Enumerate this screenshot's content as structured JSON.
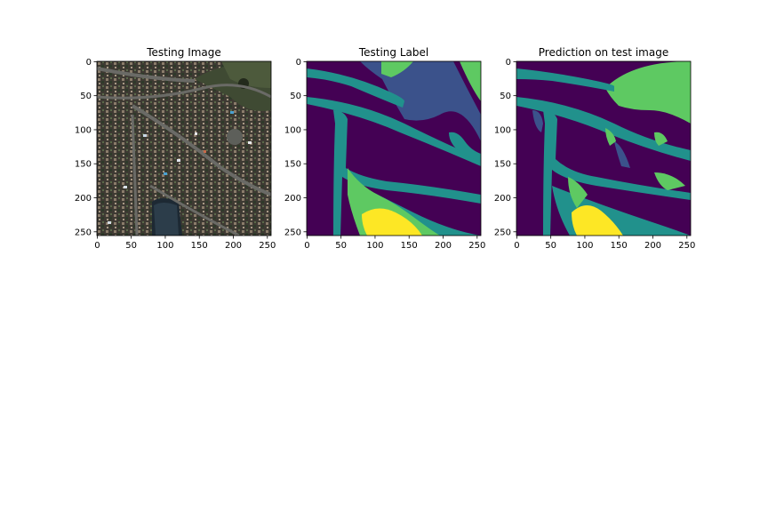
{
  "figure": {
    "colors": {
      "class_0": "#440154",
      "class_1": "#3b528b",
      "class_2": "#21918c",
      "class_3": "#5ec962",
      "class_4": "#fde725",
      "axes_edge": "#000000"
    }
  },
  "chart_data": [
    {
      "type": "heatmap",
      "title": "Testing Image",
      "content": "satellite photo",
      "x_ticks": [
        "0",
        "50",
        "100",
        "150",
        "200",
        "250"
      ],
      "y_ticks": [
        "0",
        "50",
        "100",
        "150",
        "200",
        "250"
      ],
      "xlim": [
        0,
        256
      ],
      "ylim": [
        256,
        0
      ]
    },
    {
      "type": "heatmap",
      "title": "Testing Label",
      "content": "segmentation mask",
      "x_ticks": [
        "0",
        "50",
        "100",
        "150",
        "200",
        "250"
      ],
      "y_ticks": [
        "0",
        "50",
        "100",
        "150",
        "200",
        "250"
      ],
      "xlim": [
        0,
        256
      ],
      "ylim": [
        256,
        0
      ]
    },
    {
      "type": "heatmap",
      "title": "Prediction on test image",
      "content": "segmentation mask",
      "x_ticks": [
        "0",
        "50",
        "100",
        "150",
        "200",
        "250"
      ],
      "y_ticks": [
        "0",
        "50",
        "100",
        "150",
        "200",
        "250"
      ],
      "xlim": [
        0,
        256
      ],
      "ylim": [
        256,
        0
      ]
    }
  ]
}
